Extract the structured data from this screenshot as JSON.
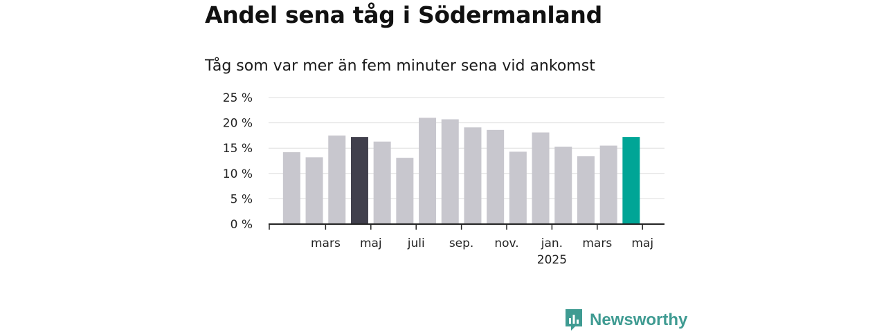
{
  "header": {
    "title": "Andel sena tåg i Södermanland",
    "subtitle": "Tåg som var mer än fem minuter sena vid ankomst"
  },
  "brand": {
    "name": "Newsworthy",
    "icon": "bar-chart-speech-bubble-icon",
    "color": "#3f9b92"
  },
  "chart_data": {
    "type": "bar",
    "title": "Andel sena tåg i Södermanland",
    "subtitle": "Tåg som var mer än fem minuter sena vid ankomst",
    "ylim": [
      0,
      25
    ],
    "yticks": [
      0,
      5,
      10,
      15,
      20,
      25
    ],
    "ytick_suffix": " %",
    "grid": true,
    "xtick_labels": [
      {
        "index": 2,
        "label": "mars"
      },
      {
        "index": 4,
        "label": "maj"
      },
      {
        "index": 6,
        "label": "juli"
      },
      {
        "index": 8,
        "label": "sep."
      },
      {
        "index": 10,
        "label": "nov."
      },
      {
        "index": 12,
        "label": "jan.",
        "label2": "2025"
      },
      {
        "index": 14,
        "label": "mars"
      },
      {
        "index": 16,
        "label": "maj"
      }
    ],
    "values": [
      14.2,
      13.2,
      17.5,
      17.2,
      16.3,
      13.1,
      21.0,
      20.7,
      19.1,
      18.6,
      14.3,
      18.1,
      15.3,
      13.4,
      15.5,
      17.2
    ],
    "highlight": [
      {
        "index": 3,
        "color": "#403f4c"
      },
      {
        "index": 15,
        "color": "#00a596"
      }
    ],
    "colors": {
      "bar": "#c8c7ce",
      "grid": "#dddddd",
      "axis": "#222222"
    }
  }
}
